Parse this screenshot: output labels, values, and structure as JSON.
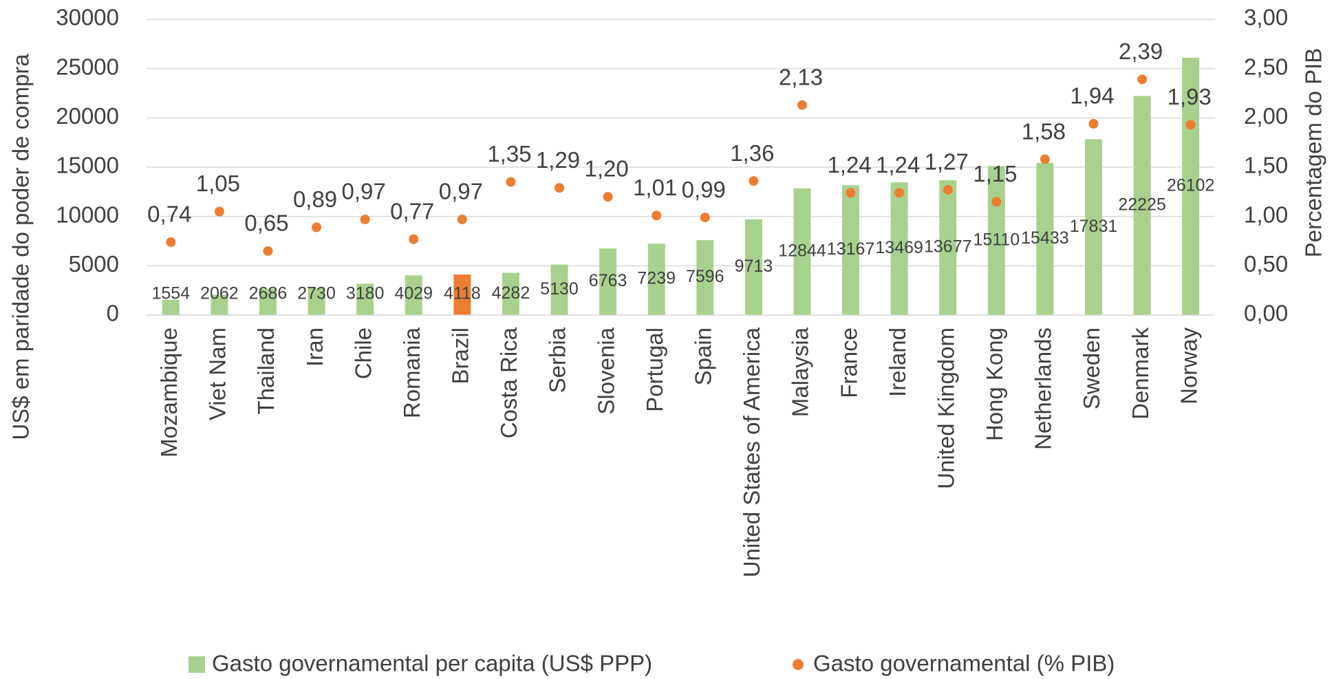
{
  "chart_data": {
    "type": "bar_scatter",
    "y_label": "US$ em paridade do poder de compra",
    "y2_label": "Percentagem do PIB",
    "categories": [
      "Mozambique",
      "Viet Nam",
      "Thailand",
      "Iran",
      "Chile",
      "Romania",
      "Brazil",
      "Costa Rica",
      "Serbia",
      "Slovenia",
      "Portugal",
      "Spain",
      "United States of America",
      "Malaysia",
      "France",
      "Ireland",
      "United Kingdom",
      "Hong Kong",
      "Netherlands",
      "Sweden",
      "Denmark",
      "Norway"
    ],
    "series": [
      {
        "name": "Gasto governamental per capita (US$ PPP)",
        "color": "#a9d18e",
        "colors": [
          "#a9d18e",
          "#a9d18e",
          "#a9d18e",
          "#a9d18e",
          "#a9d18e",
          "#a9d18e",
          "#ed7d31",
          "#a9d18e",
          "#a9d18e",
          "#a9d18e",
          "#a9d18e",
          "#a9d18e",
          "#a9d18e",
          "#a9d18e",
          "#a9d18e",
          "#a9d18e",
          "#a9d18e",
          "#a9d18e",
          "#a9d18e",
          "#a9d18e",
          "#a9d18e",
          "#a9d18e"
        ],
        "values": [
          1554,
          2062,
          2686,
          2730,
          3180,
          4029,
          4118,
          4282,
          5130,
          6763,
          7239,
          7596,
          9713,
          12844,
          13167,
          13469,
          13677,
          15110,
          15433,
          17831,
          22225,
          26102
        ]
      },
      {
        "name": "Gasto governamental (% PIB)",
        "color": "#ed7d31",
        "axis": "y2",
        "values": [
          0.74,
          1.05,
          0.65,
          0.89,
          0.97,
          0.77,
          0.97,
          1.35,
          1.29,
          1.2,
          1.01,
          0.99,
          1.36,
          2.13,
          1.24,
          1.24,
          1.27,
          1.15,
          1.58,
          1.94,
          2.39,
          1.93
        ],
        "value_labels": [
          "0,74",
          "1,05",
          "0,65",
          "0,89",
          "0,97",
          "0,77",
          "0,97",
          "1,35",
          "1,29",
          "1,20",
          "1,01",
          "0,99",
          "1,36",
          "2,13",
          "1,24",
          "1,24",
          "1,27",
          "1,15",
          "1,58",
          "1,94",
          "2,39",
          "1,93"
        ]
      }
    ],
    "ylim": [
      0,
      30000
    ],
    "yticks": [
      0,
      5000,
      10000,
      15000,
      20000,
      25000,
      30000
    ],
    "y2lim": [
      0,
      3
    ],
    "y2ticks": [
      {
        "value": 0,
        "label": "0,00"
      },
      {
        "value": 0.5,
        "label": "0,50"
      },
      {
        "value": 1,
        "label": "1,00"
      },
      {
        "value": 1.5,
        "label": "1,50"
      },
      {
        "value": 2,
        "label": "2,00"
      },
      {
        "value": 2.5,
        "label": "2,50"
      },
      {
        "value": 3,
        "label": "3,00"
      }
    ],
    "grid": true
  }
}
